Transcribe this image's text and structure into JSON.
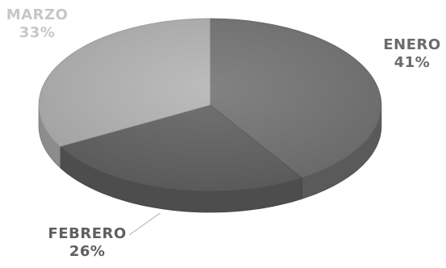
{
  "chart_data": {
    "type": "pie",
    "title": "",
    "slices": [
      {
        "label": "ENERO",
        "value": 41,
        "display": "41%",
        "color": "#747474"
      },
      {
        "label": "FEBRERO",
        "value": 26,
        "display": "26%",
        "color": "#636363"
      },
      {
        "label": "MARZO",
        "value": 33,
        "display": "33%",
        "color": "#b4b4b4"
      }
    ],
    "legend": "none",
    "style": "3d"
  }
}
